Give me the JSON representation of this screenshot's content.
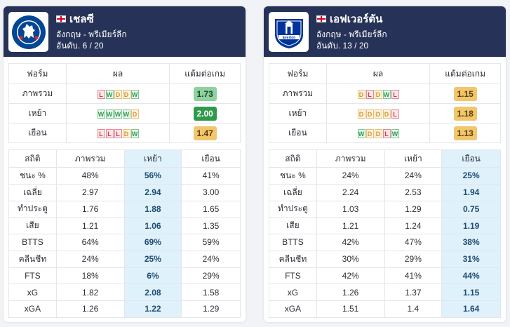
{
  "teams": [
    {
      "name": "เชลซี",
      "league": "อังกฤษ - พรีเมียร์ลีก",
      "rank": "อันดับ. 6 / 20",
      "logo_icon": "chelsea-crest-icon",
      "form_headers": [
        "ฟอร์ม",
        "ผล",
        "แต้มต่อเกม"
      ],
      "form_rows": [
        {
          "label": "ภาพรวม",
          "results": [
            "L",
            "W",
            "D",
            "D",
            "W"
          ],
          "ppg": "1.73",
          "ppg_color": "#8fd19f"
        },
        {
          "label": "เหย้า",
          "results": [
            "W",
            "W",
            "W",
            "W",
            "D"
          ],
          "ppg": "2.00",
          "ppg_color": "#2f9a4c"
        },
        {
          "label": "เยือน",
          "results": [
            "L",
            "L",
            "L",
            "D",
            "W"
          ],
          "ppg": "1.47",
          "ppg_color": "#f1c66d"
        }
      ],
      "stats_headers": [
        "สถิติ",
        "ภาพรวม",
        "เหย้า",
        "เยือน"
      ],
      "highlight_column": 2,
      "stats_rows": [
        {
          "label": "ชนะ %",
          "values": [
            "48%",
            "56%",
            "41%"
          ]
        },
        {
          "label": "เฉลี่ย",
          "values": [
            "2.97",
            "2.94",
            "3.00"
          ]
        },
        {
          "label": "ทำประตู",
          "values": [
            "1.76",
            "1.88",
            "1.65"
          ]
        },
        {
          "label": "เสีย",
          "values": [
            "1.21",
            "1.06",
            "1.35"
          ]
        },
        {
          "label": "BTTS",
          "values": [
            "64%",
            "69%",
            "59%"
          ]
        },
        {
          "label": "คลีนชีท",
          "values": [
            "24%",
            "25%",
            "24%"
          ]
        },
        {
          "label": "FTS",
          "values": [
            "18%",
            "6%",
            "29%"
          ]
        },
        {
          "label": "xG",
          "values": [
            "1.82",
            "2.08",
            "1.58"
          ]
        },
        {
          "label": "xGA",
          "values": [
            "1.26",
            "1.22",
            "1.29"
          ]
        }
      ]
    },
    {
      "name": "เอฟเวอร์ตัน",
      "league": "อังกฤษ - พรีเมียร์ลีก",
      "rank": "อันดับ. 13 / 20",
      "logo_icon": "everton-crest-icon",
      "form_headers": [
        "ฟอร์ม",
        "ผล",
        "แต้มต่อเกม"
      ],
      "form_rows": [
        {
          "label": "ภาพรวม",
          "results": [
            "D",
            "L",
            "D",
            "W",
            "L"
          ],
          "ppg": "1.15",
          "ppg_color": "#f1c66d"
        },
        {
          "label": "เหย้า",
          "results": [
            "D",
            "D",
            "D",
            "D",
            "L"
          ],
          "ppg": "1.18",
          "ppg_color": "#f1c66d"
        },
        {
          "label": "เยือน",
          "results": [
            "W",
            "D",
            "D",
            "L",
            "W"
          ],
          "ppg": "1.13",
          "ppg_color": "#f1c66d"
        }
      ],
      "stats_headers": [
        "สถิติ",
        "ภาพรวม",
        "เหย้า",
        "เยือน"
      ],
      "highlight_column": 3,
      "stats_rows": [
        {
          "label": "ชนะ %",
          "values": [
            "24%",
            "24%",
            "25%"
          ]
        },
        {
          "label": "เฉลี่ย",
          "values": [
            "2.24",
            "2.53",
            "1.94"
          ]
        },
        {
          "label": "ทำประตู",
          "values": [
            "1.03",
            "1.29",
            "0.75"
          ]
        },
        {
          "label": "เสีย",
          "values": [
            "1.21",
            "1.24",
            "1.19"
          ]
        },
        {
          "label": "BTTS",
          "values": [
            "42%",
            "47%",
            "38%"
          ]
        },
        {
          "label": "คลีนชีท",
          "values": [
            "30%",
            "29%",
            "31%"
          ]
        },
        {
          "label": "FTS",
          "values": [
            "42%",
            "41%",
            "44%"
          ]
        },
        {
          "label": "xG",
          "values": [
            "1.26",
            "1.37",
            "1.15"
          ]
        },
        {
          "label": "xGA",
          "values": [
            "1.51",
            "1.4",
            "1.64"
          ]
        }
      ]
    }
  ],
  "colors": {
    "header_bg": "#263257",
    "highlight_bg": "#dff1fb",
    "win": "#2e9e4f",
    "draw": "#d69227",
    "loss": "#d3394b"
  }
}
